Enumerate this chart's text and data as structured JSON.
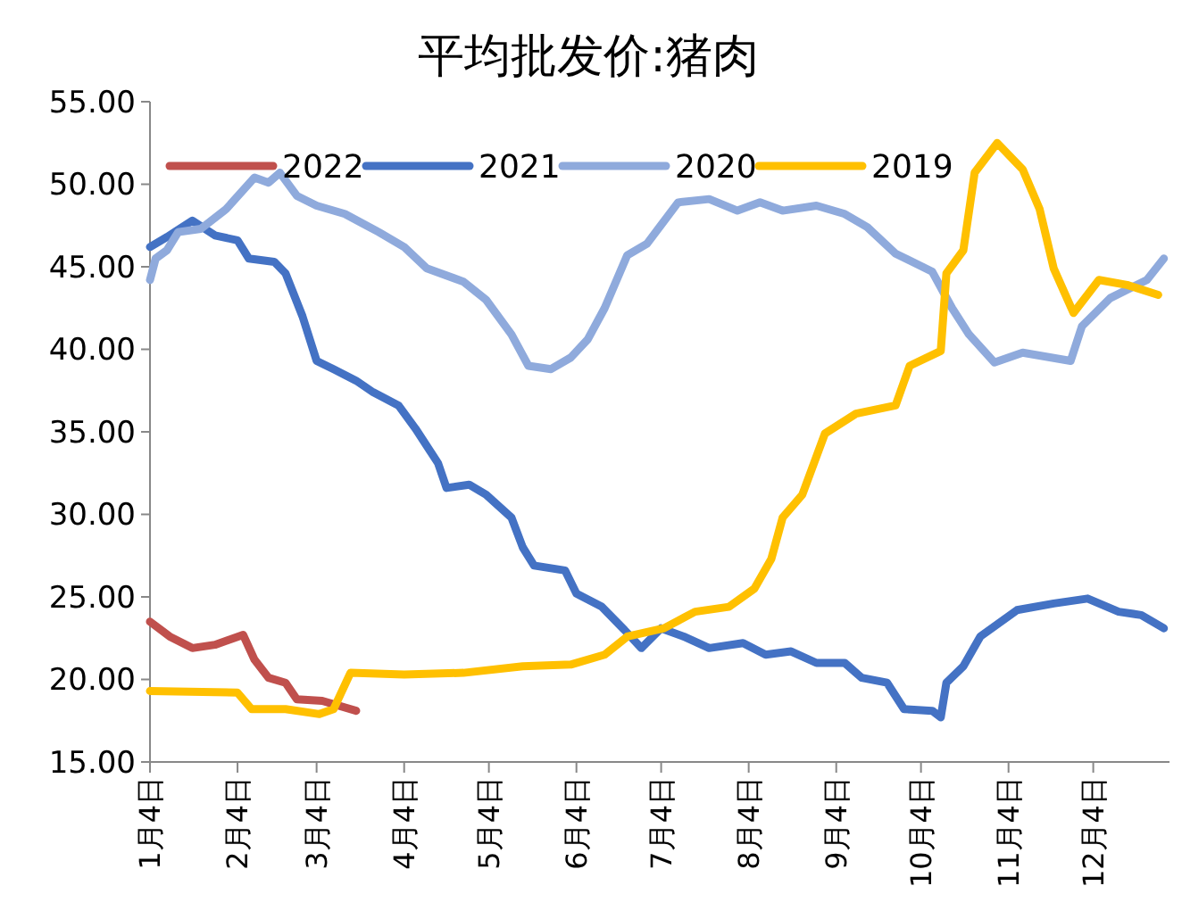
{
  "chart_data": {
    "type": "line",
    "title": "平均批发价:猪肉",
    "legend": "top",
    "line_style": "solid",
    "xlim": [
      "--01-04",
      "--12-31"
    ],
    "xticks": [
      {
        "value": "--01-04",
        "label": "1月4日"
      },
      {
        "value": "--02-04",
        "label": "2月4日"
      },
      {
        "value": "--03-04",
        "label": "3月4日"
      },
      {
        "value": "--04-04",
        "label": "4月4日"
      },
      {
        "value": "--05-04",
        "label": "5月4日"
      },
      {
        "value": "--06-04",
        "label": "6月4日"
      },
      {
        "value": "--07-04",
        "label": "7月4日"
      },
      {
        "value": "--08-04",
        "label": "8月4日"
      },
      {
        "value": "--09-04",
        "label": "9月4日"
      },
      {
        "value": "--10-04",
        "label": "10月4日"
      },
      {
        "value": "--11-04",
        "label": "11月4日"
      },
      {
        "value": "--12-04",
        "label": "12月4日"
      }
    ],
    "ylim": [
      15,
      55
    ],
    "yticks": [
      {
        "value": 15,
        "label": "15.00"
      },
      {
        "value": 20,
        "label": "20.00"
      },
      {
        "value": 25,
        "label": "25.00"
      },
      {
        "value": 30,
        "label": "30.00"
      },
      {
        "value": 35,
        "label": "35.00"
      },
      {
        "value": 40,
        "label": "40.00"
      },
      {
        "value": 45,
        "label": "45.00"
      },
      {
        "value": 50,
        "label": "50.00"
      },
      {
        "value": 55,
        "label": "55.00"
      }
    ],
    "series": [
      {
        "name": "2022",
        "color": "#c0504d",
        "x": [
          "--01-04",
          "--01-11",
          "--01-19",
          "--01-27",
          "--02-06",
          "--02-10",
          "--02-15",
          "--02-21",
          "--02-25",
          "--03-06",
          "--03-18"
        ],
        "values": [
          23.5,
          22.6,
          21.9,
          22.1,
          22.7,
          21.2,
          20.1,
          19.8,
          18.8,
          18.7,
          18.1
        ]
      },
      {
        "name": "2021",
        "color": "#4472c4",
        "x": [
          "--01-04",
          "--01-10",
          "--01-19",
          "--01-27",
          "--02-04",
          "--02-08",
          "--02-17",
          "--02-21",
          "--02-27",
          "--03-04",
          "--03-10",
          "--03-18",
          "--03-24",
          "--04-02",
          "--04-08",
          "--04-16",
          "--04-19",
          "--04-27",
          "--05-03",
          "--05-12",
          "--05-16",
          "--05-20",
          "--05-31",
          "--06-04",
          "--06-13",
          "--06-21",
          "--06-27",
          "--07-04",
          "--07-12",
          "--07-21",
          "--08-02",
          "--08-10",
          "--08-19",
          "--08-28",
          "--09-07",
          "--09-13",
          "--09-22",
          "--09-28",
          "--10-08",
          "--10-11",
          "--10-13",
          "--10-19",
          "--10-25",
          "--11-07",
          "--11-20",
          "--12-02",
          "--12-13",
          "--12-21",
          "--12-29"
        ],
        "values": [
          46.2,
          46.8,
          47.8,
          46.9,
          46.6,
          45.5,
          45.3,
          44.6,
          42.0,
          39.3,
          38.8,
          38.1,
          37.4,
          36.6,
          35.2,
          33.1,
          31.6,
          31.8,
          31.2,
          29.8,
          28.0,
          26.9,
          26.6,
          25.2,
          24.4,
          23.0,
          21.9,
          23.1,
          22.6,
          21.9,
          22.2,
          21.5,
          21.7,
          21.0,
          21.0,
          20.1,
          19.8,
          18.2,
          18.1,
          17.7,
          19.8,
          20.8,
          22.6,
          24.2,
          24.6,
          24.9,
          24.1,
          23.9,
          23.1
        ]
      },
      {
        "name": "2020",
        "color": "#8faadc",
        "x": [
          "--01-04",
          "--01-06",
          "--01-10",
          "--01-14",
          "--01-22",
          "--01-31",
          "--02-10",
          "--02-15",
          "--02-19",
          "--02-25",
          "--03-04",
          "--03-14",
          "--03-26",
          "--04-04",
          "--04-12",
          "--04-25",
          "--05-03",
          "--05-12",
          "--05-18",
          "--05-26",
          "--06-02",
          "--06-08",
          "--06-14",
          "--06-22",
          "--06-29",
          "--07-10",
          "--07-21",
          "--07-31",
          "--08-08",
          "--08-16",
          "--08-28",
          "--09-07",
          "--09-15",
          "--09-25",
          "--10-08",
          "--10-15",
          "--10-21",
          "--10-30",
          "--11-09",
          "--11-26",
          "--11-30",
          "--12-10",
          "--12-23",
          "--12-29"
        ],
        "values": [
          44.2,
          45.5,
          46.0,
          47.1,
          47.3,
          48.5,
          50.4,
          50.1,
          50.7,
          49.3,
          48.7,
          48.2,
          47.1,
          46.2,
          44.9,
          44.1,
          43.0,
          40.9,
          39.0,
          38.8,
          39.5,
          40.6,
          42.5,
          45.7,
          46.4,
          48.9,
          49.1,
          48.4,
          48.9,
          48.4,
          48.7,
          48.2,
          47.4,
          45.8,
          44.7,
          42.5,
          40.9,
          39.2,
          39.8,
          39.3,
          41.4,
          43.1,
          44.2,
          45.5
        ]
      },
      {
        "name": "2019",
        "color": "#ffc000",
        "x": [
          "--01-04",
          "--02-04",
          "--02-09",
          "--02-21",
          "--03-05",
          "--03-10",
          "--03-16",
          "--04-04",
          "--04-25",
          "--05-16",
          "--06-02",
          "--06-14",
          "--06-22",
          "--07-05",
          "--07-16",
          "--07-28",
          "--08-06",
          "--08-12",
          "--08-16",
          "--08-23",
          "--08-31",
          "--09-11",
          "--09-25",
          "--09-30",
          "--10-11",
          "--10-13",
          "--10-19",
          "--10-23",
          "--10-31",
          "--11-09",
          "--11-15",
          "--11-20",
          "--11-27",
          "--12-06",
          "--12-16",
          "--12-27"
        ],
        "values": [
          19.3,
          19.2,
          18.2,
          18.2,
          17.9,
          18.2,
          20.4,
          20.3,
          20.4,
          20.8,
          20.9,
          21.5,
          22.6,
          23.1,
          24.1,
          24.4,
          25.5,
          27.3,
          29.8,
          31.2,
          34.9,
          36.1,
          36.6,
          39.0,
          39.9,
          44.6,
          46.0,
          50.7,
          52.5,
          50.9,
          48.5,
          44.9,
          42.2,
          44.2,
          43.9,
          43.3
        ]
      }
    ]
  }
}
